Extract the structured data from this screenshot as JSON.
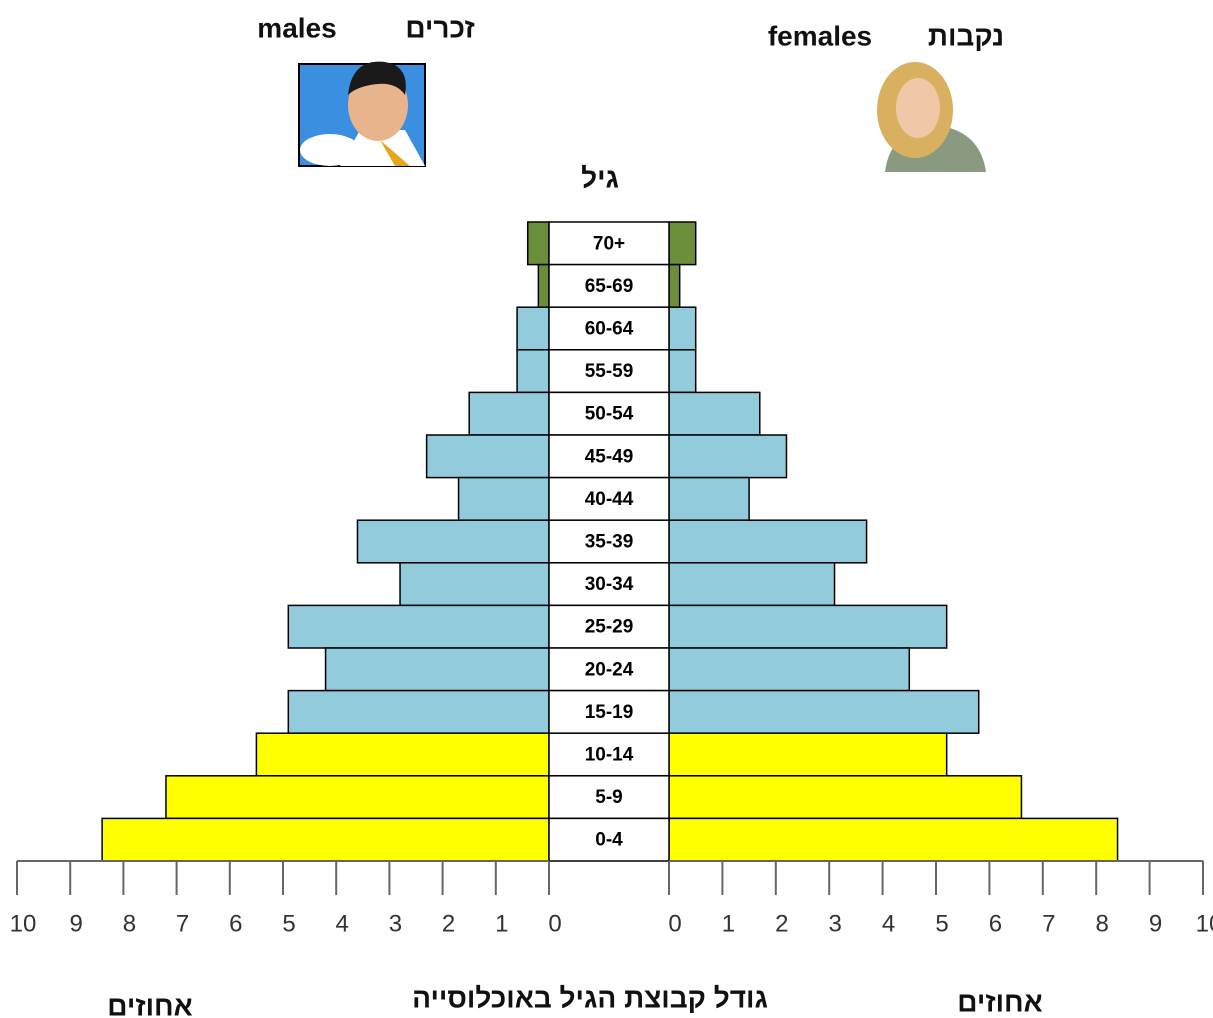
{
  "chart_data": {
    "type": "pyramid",
    "age_label": "גיל",
    "x_label": "גודל קבוצת הגיל באוכלוסייה",
    "left_axis_label": "אחוזים",
    "right_axis_label": "אחוזים",
    "categories": [
      "70+",
      "65-69",
      "60-64",
      "55-59",
      "50-54",
      "45-49",
      "40-44",
      "35-39",
      "30-34",
      "25-29",
      "20-24",
      "15-19",
      "10-14",
      "5-9",
      "0-4"
    ],
    "colors": [
      "#6b8e3a",
      "#6b8e3a",
      "#92cbdb",
      "#92cbdb",
      "#92cbdb",
      "#92cbdb",
      "#92cbdb",
      "#92cbdb",
      "#92cbdb",
      "#92cbdb",
      "#92cbdb",
      "#92cbdb",
      "#ffff00",
      "#ffff00",
      "#ffff00"
    ],
    "series": [
      {
        "name": "males",
        "name_he": "זכרים",
        "side": "left",
        "values": [
          0.4,
          0.2,
          0.6,
          0.6,
          1.5,
          2.3,
          1.7,
          3.6,
          2.8,
          4.9,
          4.2,
          4.9,
          5.5,
          7.2,
          8.4
        ]
      },
      {
        "name": "females",
        "name_he": "נקבות",
        "side": "right",
        "values": [
          0.5,
          0.2,
          0.5,
          0.5,
          1.7,
          2.2,
          1.5,
          3.7,
          3.1,
          5.2,
          4.5,
          5.8,
          5.2,
          6.6,
          8.4
        ]
      }
    ],
    "xlim": [
      0,
      10
    ],
    "xticks": [
      0,
      1,
      2,
      3,
      4,
      5,
      6,
      7,
      8,
      9,
      10
    ]
  }
}
